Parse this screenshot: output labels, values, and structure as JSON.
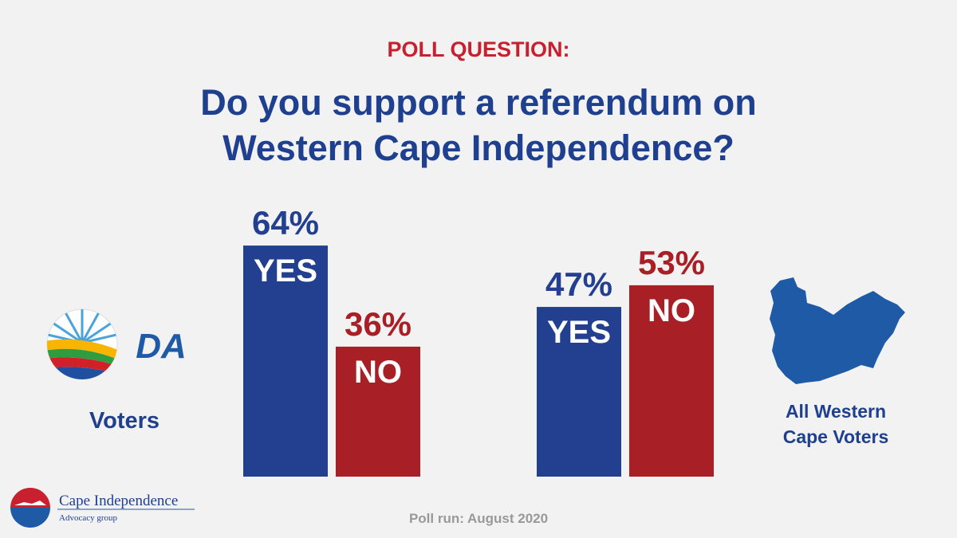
{
  "chart_data": {
    "type": "bar",
    "supertitle": "POLL QUESTION:",
    "title": [
      "Do you support a referendum on",
      "Western Cape Independence?"
    ],
    "ylim": [
      0,
      100
    ],
    "groups": [
      {
        "label": [
          "Voters"
        ],
        "logo_text": "DA",
        "categories": [
          "YES",
          "NO"
        ],
        "values": [
          64,
          36
        ],
        "value_labels": [
          "64%",
          "36%"
        ],
        "colors": [
          "#233f8f",
          "#a91f26"
        ]
      },
      {
        "label": [
          "All Western",
          "Cape Voters"
        ],
        "categories": [
          "YES",
          "NO"
        ],
        "values": [
          47,
          53
        ],
        "value_labels": [
          "47%",
          "53%"
        ],
        "colors": [
          "#233f8f",
          "#a91f26"
        ]
      }
    ],
    "footnote": "Poll run: August 2020"
  },
  "brand": {
    "name": "Cape Independence",
    "tagline": "Advocacy group"
  }
}
